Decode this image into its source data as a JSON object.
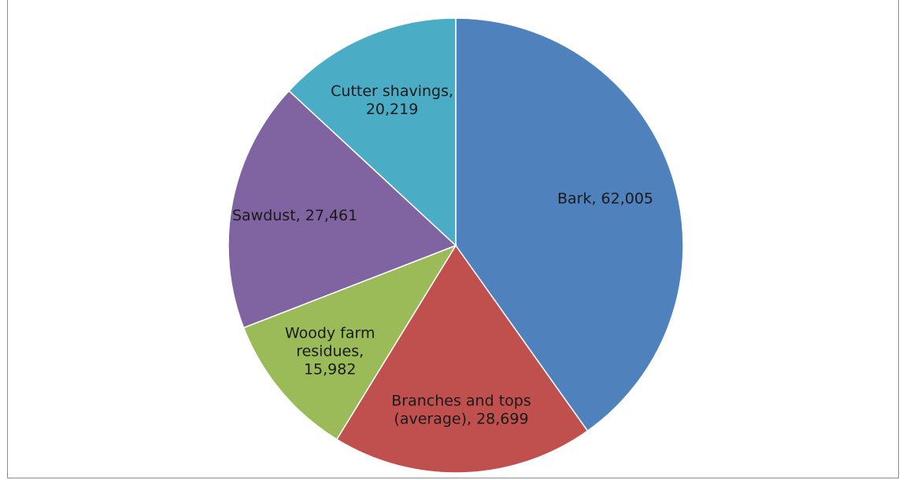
{
  "chart_data": {
    "type": "pie",
    "title": "",
    "start_angle_deg": 0,
    "direction": "clockwise",
    "slices": [
      {
        "label_lines": [
          "Bark, 62,005"
        ],
        "name": "Bark",
        "value": 62005,
        "color": "#4F81BD"
      },
      {
        "label_lines": [
          "Branches and tops",
          "(average), 28,699"
        ],
        "name": "Branches and tops (average)",
        "value": 28699,
        "color": "#C0504D"
      },
      {
        "label_lines": [
          "Woody farm",
          "residues,",
          "15,982"
        ],
        "name": "Woody farm residues",
        "value": 15982,
        "color": "#9BBB59"
      },
      {
        "label_lines": [
          "Sawdust, 27,461"
        ],
        "name": "Sawdust",
        "value": 27461,
        "color": "#8064A2"
      },
      {
        "label_lines": [
          "Cutter shavings,",
          "20,219"
        ],
        "name": "Cutter shavings",
        "value": 20219,
        "color": "#4BACC6"
      }
    ]
  }
}
